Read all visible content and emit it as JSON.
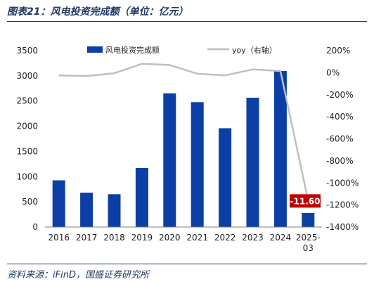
{
  "figure": {
    "title": "图表21：风电投资完成额（单位：亿元）",
    "source": "资料来源：iFinD，国盛证券研究所"
  },
  "colors": {
    "bar": "#0b3fa6",
    "line": "#bfbfbf",
    "callout_bg": "#c00000",
    "callout_text": "#ffffff",
    "axis_text": "#222222",
    "title_text": "#1f3864"
  },
  "chart_data": {
    "type": "bar",
    "categories": [
      "2016",
      "2017",
      "2018",
      "2019",
      "2020",
      "2021",
      "2022",
      "2023",
      "2024",
      "2025-03"
    ],
    "series": [
      {
        "name": "风电投资完成额",
        "type": "bar",
        "axis": "left",
        "values": [
          927,
          682,
          651,
          1171,
          2653,
          2478,
          1960,
          2566,
          3095,
          279
        ]
      },
      {
        "name": "yoy（右轴）",
        "type": "line",
        "axis": "right",
        "unit": "%",
        "values": [
          -25,
          -30,
          -5,
          80,
          70,
          -10,
          -25,
          30,
          15,
          -1160
        ]
      }
    ],
    "yleft": {
      "lim": [
        0,
        3500
      ],
      "ticks": [
        0,
        500,
        1000,
        1500,
        2000,
        2500,
        3000,
        3500
      ]
    },
    "yright": {
      "lim": [
        -1400,
        200
      ],
      "ticks": [
        200,
        0,
        -200,
        -400,
        -600,
        -800,
        -1000,
        -1200,
        -1400
      ],
      "tick_labels": [
        "200%",
        "0%",
        "-200%",
        "-400%",
        "-600%",
        "-800%",
        "-1000%",
        "-1200%",
        "-1400%"
      ]
    },
    "legend": {
      "placement": "top"
    },
    "grid": false,
    "annotations": [
      {
        "text": "-11.60",
        "category": "2025-03",
        "series": "yoy（右轴）"
      }
    ]
  }
}
